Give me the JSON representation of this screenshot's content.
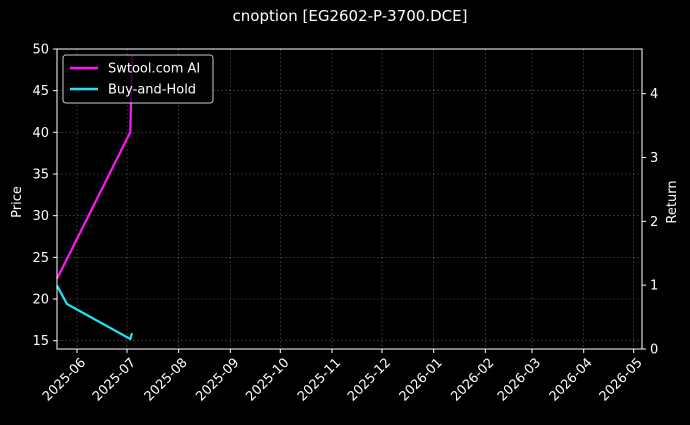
{
  "chart_data": {
    "type": "line",
    "title": "cnoption [EG2602-P-3700.DCE]",
    "xlabel": "",
    "ylabel": "Price",
    "y2label": "Return",
    "ylim": [
      14,
      50
    ],
    "y2lim": [
      0,
      4.7
    ],
    "xlim": [
      "2025-05-20",
      "2026-05-06"
    ],
    "yticks": [
      "15",
      "20",
      "25",
      "30",
      "35",
      "40",
      "45",
      "50"
    ],
    "y2ticks": [
      "0",
      "1",
      "2",
      "3",
      "4"
    ],
    "xticks": [
      "2025-06",
      "2025-07",
      "2025-08",
      "2025-09",
      "2025-10",
      "2025-11",
      "2025-12",
      "2026-01",
      "2026-02",
      "2026-03",
      "2026-04",
      "2026-05"
    ],
    "grid": true,
    "legend_position": "top-left",
    "background": "#000000",
    "series": [
      {
        "name": "Swtool.com AI",
        "color": "#ff14ff",
        "axis": "right",
        "points": [
          {
            "x": "2025-05-20",
            "y": 1.1
          },
          {
            "x": "2025-07-03",
            "y": 3.4
          },
          {
            "x": "2025-07-04",
            "y": 4.6
          }
        ]
      },
      {
        "name": "Buy-and-Hold",
        "color": "#22e5f0",
        "axis": "left",
        "points": [
          {
            "x": "2025-05-20",
            "y": 21.6
          },
          {
            "x": "2025-05-26",
            "y": 19.4
          },
          {
            "x": "2025-07-03",
            "y": 15.2
          },
          {
            "x": "2025-07-04",
            "y": 15.9
          }
        ]
      }
    ]
  }
}
